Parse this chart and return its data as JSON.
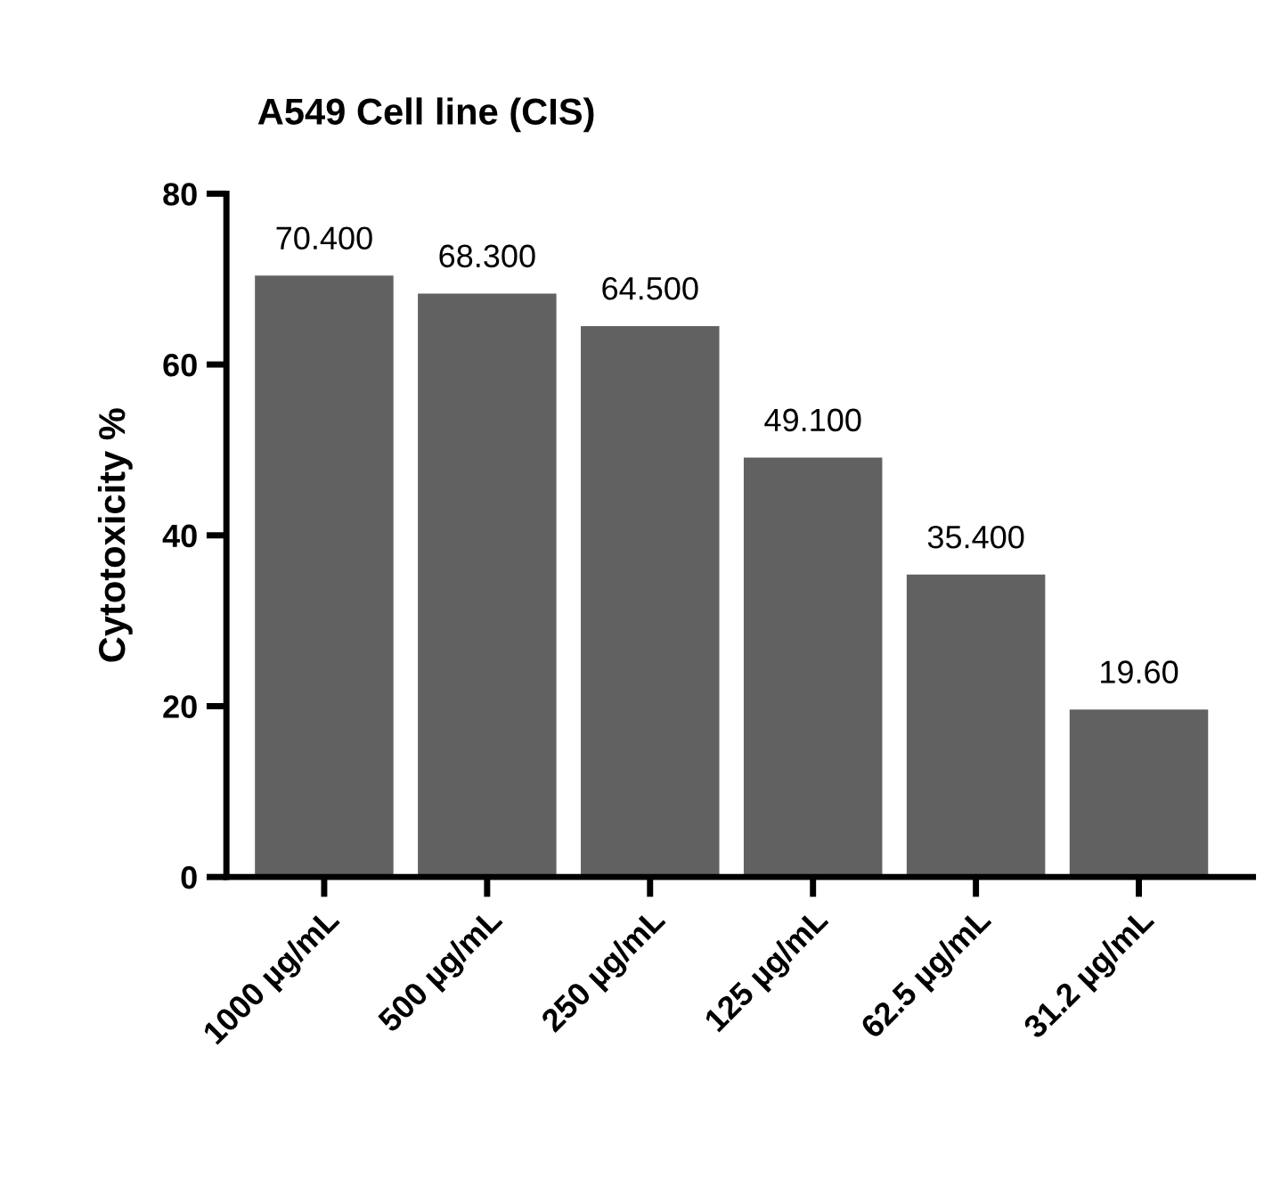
{
  "chart_data": {
    "type": "bar",
    "title": "A549 Cell line (CIS)",
    "ylabel": "Cytotoxicity %",
    "categories": [
      "1000 µg/mL",
      "500 µg/mL",
      "250 µg/mL",
      "125 µg/mL",
      "62.5 µg/mL",
      "31.2 µg/mL"
    ],
    "values": [
      70.4,
      68.3,
      64.5,
      49.1,
      35.4,
      19.6
    ],
    "value_labels": [
      "70.400",
      "68.300",
      "64.500",
      "49.100",
      "35.400",
      "19.60"
    ],
    "color": "#616161",
    "ylim": [
      0,
      80
    ],
    "yticks": [
      0,
      20,
      40,
      60,
      80
    ],
    "grid": false,
    "legend": false
  }
}
